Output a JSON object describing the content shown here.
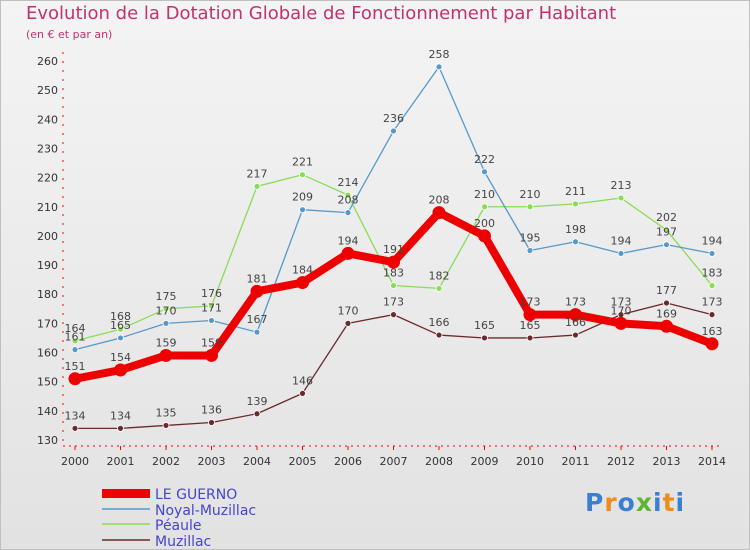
{
  "title": "Evolution de la Dotation Globale de Fonctionnement par Habitant",
  "subtitle": "(en € et par an)",
  "logo_text": "Proxiti",
  "chart_data": {
    "type": "line",
    "title": "Evolution de la Dotation Globale de Fonctionnement par Habitant",
    "subtitle": "(en € et par an)",
    "xlabel": "",
    "ylabel": "",
    "categories": [
      "2000",
      "2001",
      "2002",
      "2003",
      "2004",
      "2005",
      "2006",
      "2007",
      "2008",
      "2009",
      "2010",
      "2011",
      "2012",
      "2013",
      "2014"
    ],
    "ylim": [
      130,
      260
    ],
    "yticks": [
      130,
      140,
      150,
      160,
      170,
      180,
      190,
      200,
      210,
      220,
      230,
      240,
      250,
      260
    ],
    "grid": false,
    "legend_position": "bottom-left",
    "series": [
      {
        "name": "LE GUERNO",
        "color": "#ee0000",
        "values": [
          151,
          154,
          159,
          159,
          181,
          184,
          194,
          191,
          208,
          200,
          173,
          173,
          170,
          169,
          163
        ]
      },
      {
        "name": "Noyal-Muzillac",
        "color": "#5599cc",
        "values": [
          161,
          165,
          170,
          171,
          167,
          209,
          208,
          236,
          258,
          222,
          195,
          198,
          194,
          197,
          194
        ]
      },
      {
        "name": "Péaule",
        "color": "#88dd55",
        "values": [
          164,
          168,
          175,
          176,
          217,
          221,
          214,
          183,
          182,
          210,
          210,
          211,
          213,
          202,
          183
        ]
      },
      {
        "name": "Muzillac",
        "color": "#6b2a2a",
        "values": [
          134,
          134,
          135,
          136,
          139,
          146,
          170,
          173,
          166,
          165,
          165,
          166,
          173,
          177,
          173
        ]
      }
    ]
  }
}
